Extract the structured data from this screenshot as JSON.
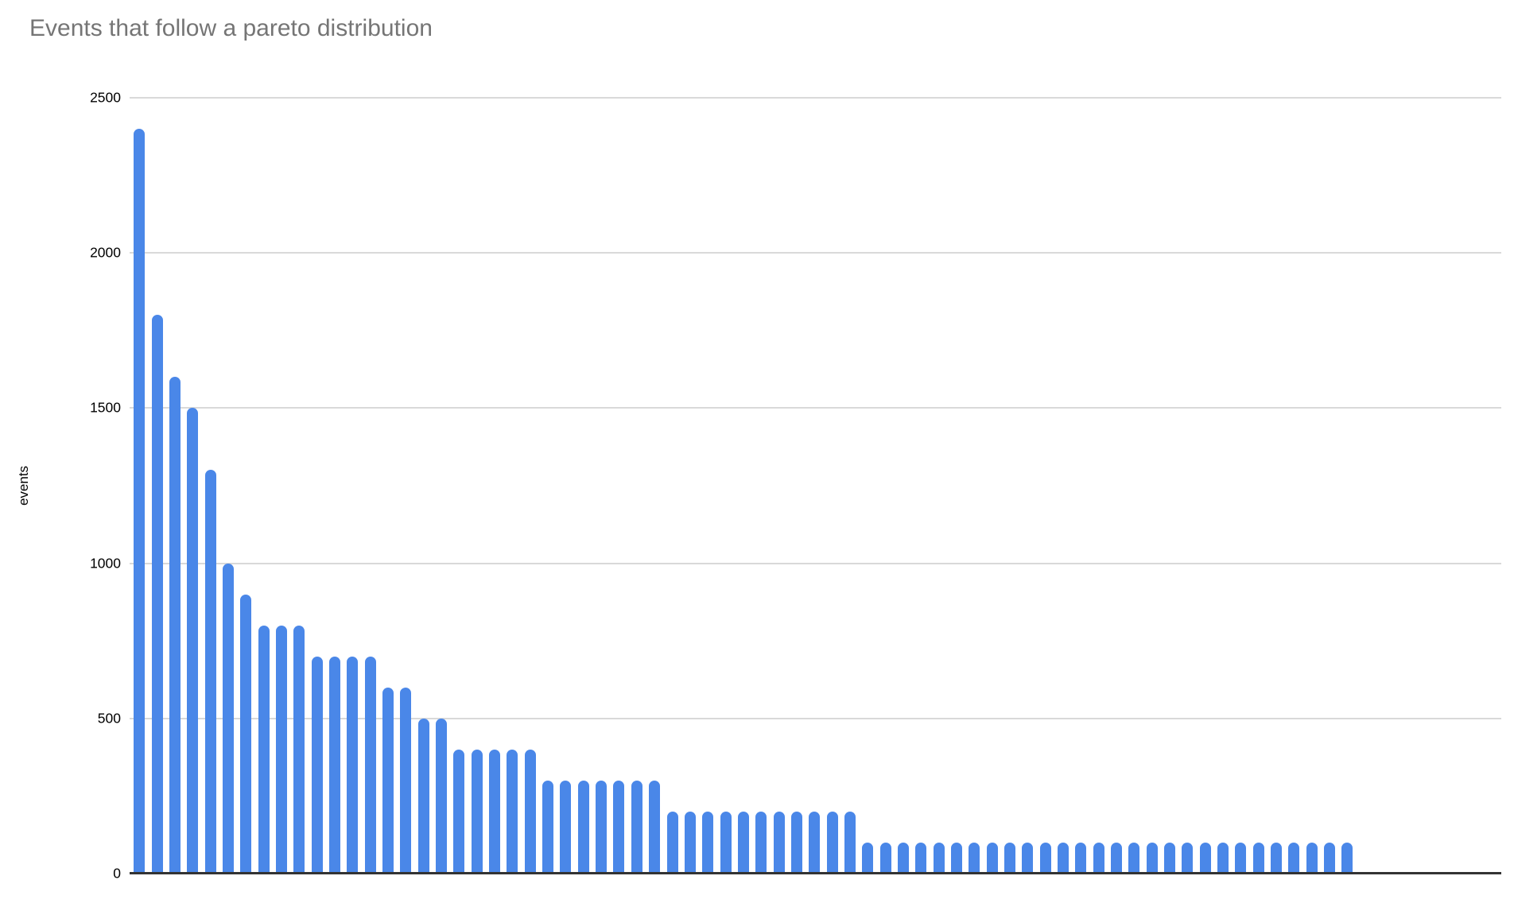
{
  "chart_data": {
    "type": "bar",
    "title": "Events that follow a pareto distribution",
    "xlabel": "",
    "ylabel": "events",
    "ylim": [
      0,
      2500
    ],
    "yticks": [
      0,
      500,
      1000,
      1500,
      2000,
      2500
    ],
    "grid": "horizontal",
    "legend": "none",
    "bar_color": "#4a87e8",
    "title_color": "#757575",
    "gridline_color": "#d9d9d9",
    "axis_line_color": "#333333",
    "values": [
      2400,
      1800,
      1600,
      1500,
      1300,
      1000,
      900,
      800,
      800,
      800,
      700,
      700,
      700,
      700,
      600,
      600,
      500,
      500,
      400,
      400,
      400,
      400,
      400,
      300,
      300,
      300,
      300,
      300,
      300,
      300,
      200,
      200,
      200,
      200,
      200,
      200,
      200,
      200,
      200,
      200,
      200,
      100,
      100,
      100,
      100,
      100,
      100,
      100,
      100,
      100,
      100,
      100,
      100,
      100,
      100,
      100,
      100,
      100,
      100,
      100,
      100,
      100,
      100,
      100,
      100,
      100,
      100,
      100,
      100
    ]
  }
}
